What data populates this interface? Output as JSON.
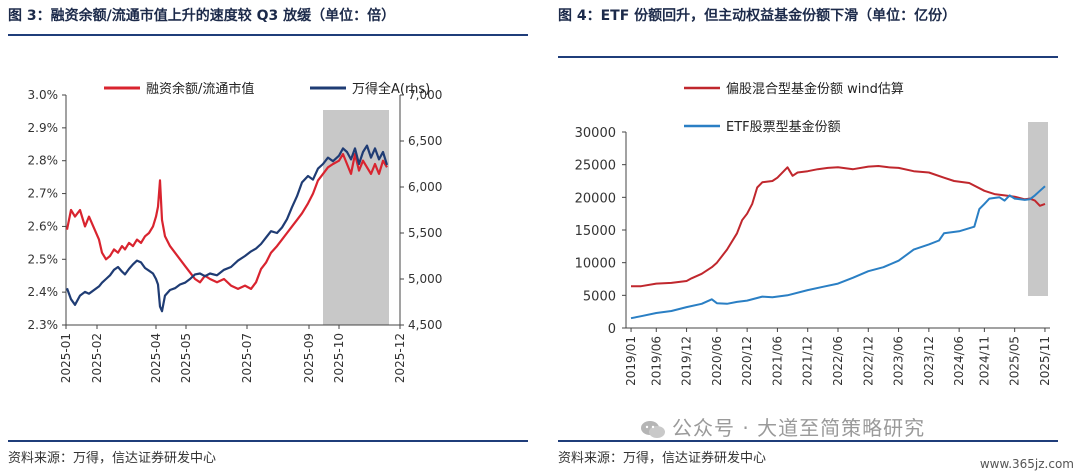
{
  "left": {
    "title": "图 3：融资余额/流通市值上升的速度较 Q3 放缓（单位：倍）",
    "source": "资料来源：万得，信达证券研发中心"
  },
  "right": {
    "title": "图 4：ETF 份额回升，但主动权益基金份额下滑（单位：亿份）",
    "source": "资料来源：万得，信达证券研发中心"
  },
  "watermark": "公众号 · 大道至简策略研究",
  "credit": "www.365jz.com",
  "colors": {
    "red": "#d9242f",
    "navy": "#1f3c74",
    "blue": "#2a7fc4",
    "darkred": "#c0272d",
    "shade": "#c8c8c8"
  },
  "chart_data": [
    {
      "type": "line",
      "title": "",
      "y_left": {
        "ticks": [
          "2.3%",
          "2.4%",
          "2.5%",
          "2.6%",
          "2.7%",
          "2.8%",
          "2.9%",
          "3.0%"
        ],
        "range": [
          2.3,
          3.0
        ]
      },
      "y_right": {
        "ticks": [
          "4,500",
          "5,000",
          "5,500",
          "6,000",
          "6,500",
          "7,000"
        ],
        "range": [
          4500,
          7000
        ]
      },
      "x_ticks": [
        "2025-01",
        "2025-02",
        "2025-04",
        "2025-05",
        "2025-07",
        "2025-09",
        "2025-10",
        "2025-12"
      ],
      "x_range": [
        "2025-01",
        "2025-12"
      ],
      "shaded_region": [
        "2025-09-15",
        "2025-11-20"
      ],
      "legend_position": "top",
      "series": [
        {
          "name": "融资余额/流通市值",
          "axis": "left",
          "color": "#d9242f",
          "points": [
            [
              "2025-01-02",
              2.59
            ],
            [
              "2025-01-06",
              2.65
            ],
            [
              "2025-01-10",
              2.63
            ],
            [
              "2025-01-15",
              2.65
            ],
            [
              "2025-01-20",
              2.6
            ],
            [
              "2025-01-24",
              2.63
            ],
            [
              "2025-02-03",
              2.56
            ],
            [
              "2025-02-06",
              2.52
            ],
            [
              "2025-02-10",
              2.5
            ],
            [
              "2025-02-14",
              2.51
            ],
            [
              "2025-02-18",
              2.53
            ],
            [
              "2025-02-22",
              2.52
            ],
            [
              "2025-02-26",
              2.54
            ],
            [
              "2025-03-01",
              2.53
            ],
            [
              "2025-03-05",
              2.55
            ],
            [
              "2025-03-09",
              2.54
            ],
            [
              "2025-03-13",
              2.56
            ],
            [
              "2025-03-17",
              2.55
            ],
            [
              "2025-03-21",
              2.57
            ],
            [
              "2025-03-25",
              2.58
            ],
            [
              "2025-03-29",
              2.6
            ],
            [
              "2025-04-01",
              2.63
            ],
            [
              "2025-04-03",
              2.66
            ],
            [
              "2025-04-05",
              2.74
            ],
            [
              "2025-04-07",
              2.62
            ],
            [
              "2025-04-10",
              2.57
            ],
            [
              "2025-04-15",
              2.54
            ],
            [
              "2025-04-20",
              2.52
            ],
            [
              "2025-04-25",
              2.5
            ],
            [
              "2025-04-30",
              2.48
            ],
            [
              "2025-05-05",
              2.46
            ],
            [
              "2025-05-10",
              2.44
            ],
            [
              "2025-05-15",
              2.43
            ],
            [
              "2025-05-20",
              2.45
            ],
            [
              "2025-05-25",
              2.44
            ],
            [
              "2025-06-01",
              2.43
            ],
            [
              "2025-06-08",
              2.44
            ],
            [
              "2025-06-15",
              2.42
            ],
            [
              "2025-06-22",
              2.41
            ],
            [
              "2025-06-29",
              2.42
            ],
            [
              "2025-07-05",
              2.41
            ],
            [
              "2025-07-10",
              2.43
            ],
            [
              "2025-07-15",
              2.47
            ],
            [
              "2025-07-20",
              2.49
            ],
            [
              "2025-07-25",
              2.52
            ],
            [
              "2025-07-31",
              2.54
            ],
            [
              "2025-08-05",
              2.56
            ],
            [
              "2025-08-10",
              2.58
            ],
            [
              "2025-08-15",
              2.6
            ],
            [
              "2025-08-20",
              2.62
            ],
            [
              "2025-08-25",
              2.64
            ],
            [
              "2025-08-31",
              2.67
            ],
            [
              "2025-09-05",
              2.7
            ],
            [
              "2025-09-10",
              2.74
            ],
            [
              "2025-09-15",
              2.76
            ],
            [
              "2025-09-20",
              2.78
            ],
            [
              "2025-09-25",
              2.79
            ],
            [
              "2025-10-01",
              2.8
            ],
            [
              "2025-10-05",
              2.82
            ],
            [
              "2025-10-09",
              2.79
            ],
            [
              "2025-10-13",
              2.76
            ],
            [
              "2025-10-17",
              2.82
            ],
            [
              "2025-10-21",
              2.77
            ],
            [
              "2025-10-25",
              2.8
            ],
            [
              "2025-10-29",
              2.78
            ],
            [
              "2025-11-02",
              2.76
            ],
            [
              "2025-11-06",
              2.79
            ],
            [
              "2025-11-10",
              2.76
            ],
            [
              "2025-11-14",
              2.8
            ],
            [
              "2025-11-18",
              2.78
            ]
          ]
        },
        {
          "name": "万得全A(rhs)",
          "axis": "right",
          "color": "#1f3c74",
          "points": [
            [
              "2025-01-02",
              4900
            ],
            [
              "2025-01-06",
              4780
            ],
            [
              "2025-01-10",
              4720
            ],
            [
              "2025-01-15",
              4820
            ],
            [
              "2025-01-20",
              4860
            ],
            [
              "2025-01-24",
              4840
            ],
            [
              "2025-02-03",
              4920
            ],
            [
              "2025-02-06",
              4960
            ],
            [
              "2025-02-10",
              5000
            ],
            [
              "2025-02-14",
              5040
            ],
            [
              "2025-02-18",
              5100
            ],
            [
              "2025-02-22",
              5130
            ],
            [
              "2025-02-26",
              5080
            ],
            [
              "2025-03-01",
              5050
            ],
            [
              "2025-03-05",
              5110
            ],
            [
              "2025-03-09",
              5160
            ],
            [
              "2025-03-13",
              5200
            ],
            [
              "2025-03-17",
              5180
            ],
            [
              "2025-03-21",
              5120
            ],
            [
              "2025-03-25",
              5090
            ],
            [
              "2025-03-29",
              5060
            ],
            [
              "2025-04-01",
              5000
            ],
            [
              "2025-04-03",
              4940
            ],
            [
              "2025-04-05",
              4700
            ],
            [
              "2025-04-07",
              4650
            ],
            [
              "2025-04-10",
              4820
            ],
            [
              "2025-04-15",
              4880
            ],
            [
              "2025-04-20",
              4900
            ],
            [
              "2025-04-25",
              4940
            ],
            [
              "2025-04-30",
              4960
            ],
            [
              "2025-05-05",
              5000
            ],
            [
              "2025-05-10",
              5050
            ],
            [
              "2025-05-15",
              5060
            ],
            [
              "2025-05-20",
              5030
            ],
            [
              "2025-05-25",
              5060
            ],
            [
              "2025-06-01",
              5040
            ],
            [
              "2025-06-08",
              5100
            ],
            [
              "2025-06-15",
              5130
            ],
            [
              "2025-06-22",
              5200
            ],
            [
              "2025-06-29",
              5250
            ],
            [
              "2025-07-05",
              5300
            ],
            [
              "2025-07-10",
              5330
            ],
            [
              "2025-07-15",
              5380
            ],
            [
              "2025-07-20",
              5450
            ],
            [
              "2025-07-25",
              5520
            ],
            [
              "2025-07-31",
              5500
            ],
            [
              "2025-08-05",
              5560
            ],
            [
              "2025-08-10",
              5650
            ],
            [
              "2025-08-15",
              5780
            ],
            [
              "2025-08-20",
              5900
            ],
            [
              "2025-08-25",
              6050
            ],
            [
              "2025-08-31",
              6120
            ],
            [
              "2025-09-05",
              6080
            ],
            [
              "2025-09-10",
              6200
            ],
            [
              "2025-09-15",
              6250
            ],
            [
              "2025-09-20",
              6320
            ],
            [
              "2025-09-25",
              6280
            ],
            [
              "2025-10-01",
              6340
            ],
            [
              "2025-10-05",
              6420
            ],
            [
              "2025-10-09",
              6380
            ],
            [
              "2025-10-13",
              6300
            ],
            [
              "2025-10-17",
              6420
            ],
            [
              "2025-10-21",
              6250
            ],
            [
              "2025-10-25",
              6380
            ],
            [
              "2025-10-29",
              6450
            ],
            [
              "2025-11-02",
              6320
            ],
            [
              "2025-11-06",
              6420
            ],
            [
              "2025-11-10",
              6300
            ],
            [
              "2025-11-14",
              6380
            ],
            [
              "2025-11-18",
              6240
            ]
          ]
        }
      ]
    },
    {
      "type": "line",
      "title": "",
      "y_left": {
        "ticks": [
          "0",
          "5000",
          "10000",
          "15000",
          "20000",
          "25000",
          "30000"
        ],
        "range": [
          0,
          30000
        ]
      },
      "x_ticks": [
        "2019/01",
        "2019/06",
        "2019/12",
        "2020/06",
        "2020/12",
        "2021/06",
        "2021/12",
        "2022/06",
        "2022/12",
        "2023/06",
        "2023/12",
        "2024/06",
        "2024/11",
        "2025/05",
        "2025/11"
      ],
      "x_range": [
        "2019/01",
        "2025/11"
      ],
      "shaded_region": [
        "2025/08",
        "2025/12"
      ],
      "legend_position": "top-left",
      "series": [
        {
          "name": "偏股混合型基金份额 wind估算",
          "axis": "left",
          "color": "#c0272d",
          "points": [
            [
              "2019/01",
              6400
            ],
            [
              "2019/03",
              6400
            ],
            [
              "2019/06",
              6800
            ],
            [
              "2019/09",
              6900
            ],
            [
              "2019/12",
              7200
            ],
            [
              "2020/01",
              7600
            ],
            [
              "2020/03",
              8300
            ],
            [
              "2020/05",
              9300
            ],
            [
              "2020/06",
              10000
            ],
            [
              "2020/08",
              12000
            ],
            [
              "2020/10",
              14500
            ],
            [
              "2020/11",
              16500
            ],
            [
              "2020/12",
              17500
            ],
            [
              "2021/01",
              19000
            ],
            [
              "2021/02",
              21500
            ],
            [
              "2021/03",
              22300
            ],
            [
              "2021/05",
              22500
            ],
            [
              "2021/06",
              23000
            ],
            [
              "2021/08",
              24600
            ],
            [
              "2021/09",
              23300
            ],
            [
              "2021/10",
              23800
            ],
            [
              "2021/12",
              24000
            ],
            [
              "2022/02",
              24300
            ],
            [
              "2022/04",
              24500
            ],
            [
              "2022/06",
              24600
            ],
            [
              "2022/09",
              24300
            ],
            [
              "2022/12",
              24700
            ],
            [
              "2023/02",
              24800
            ],
            [
              "2023/04",
              24600
            ],
            [
              "2023/06",
              24500
            ],
            [
              "2023/09",
              24000
            ],
            [
              "2023/12",
              23800
            ],
            [
              "2024/03",
              23000
            ],
            [
              "2024/05",
              22500
            ],
            [
              "2024/08",
              22200
            ],
            [
              "2024/11",
              21000
            ],
            [
              "2025/01",
              20500
            ],
            [
              "2025/03",
              20300
            ],
            [
              "2025/05",
              20100
            ],
            [
              "2025/07",
              19700
            ],
            [
              "2025/08",
              19800
            ],
            [
              "2025/09",
              19500
            ],
            [
              "2025/10",
              18700
            ],
            [
              "2025/11",
              19000
            ]
          ]
        },
        {
          "name": "ETF股票型基金份额",
          "axis": "left",
          "color": "#2a7fc4",
          "points": [
            [
              "2019/01",
              1500
            ],
            [
              "2019/03",
              1800
            ],
            [
              "2019/06",
              2300
            ],
            [
              "2019/09",
              2600
            ],
            [
              "2019/12",
              3200
            ],
            [
              "2020/03",
              3700
            ],
            [
              "2020/05",
              4400
            ],
            [
              "2020/06",
              3800
            ],
            [
              "2020/08",
              3700
            ],
            [
              "2020/10",
              4000
            ],
            [
              "2020/12",
              4200
            ],
            [
              "2021/03",
              4800
            ],
            [
              "2021/05",
              4700
            ],
            [
              "2021/08",
              5000
            ],
            [
              "2021/12",
              5800
            ],
            [
              "2022/03",
              6300
            ],
            [
              "2022/06",
              6800
            ],
            [
              "2022/09",
              7700
            ],
            [
              "2022/12",
              8700
            ],
            [
              "2023/03",
              9300
            ],
            [
              "2023/06",
              10300
            ],
            [
              "2023/09",
              12000
            ],
            [
              "2023/12",
              12800
            ],
            [
              "2024/02",
              13400
            ],
            [
              "2024/03",
              14500
            ],
            [
              "2024/06",
              14800
            ],
            [
              "2024/09",
              15500
            ],
            [
              "2024/10",
              18200
            ],
            [
              "2024/11",
              19000
            ],
            [
              "2024/12",
              19800
            ],
            [
              "2025/02",
              20000
            ],
            [
              "2025/03",
              19500
            ],
            [
              "2025/04",
              20300
            ],
            [
              "2025/05",
              19800
            ],
            [
              "2025/07",
              19600
            ],
            [
              "2025/08",
              19700
            ],
            [
              "2025/09",
              20300
            ],
            [
              "2025/10",
              21000
            ],
            [
              "2025/11",
              21700
            ]
          ]
        }
      ]
    }
  ]
}
